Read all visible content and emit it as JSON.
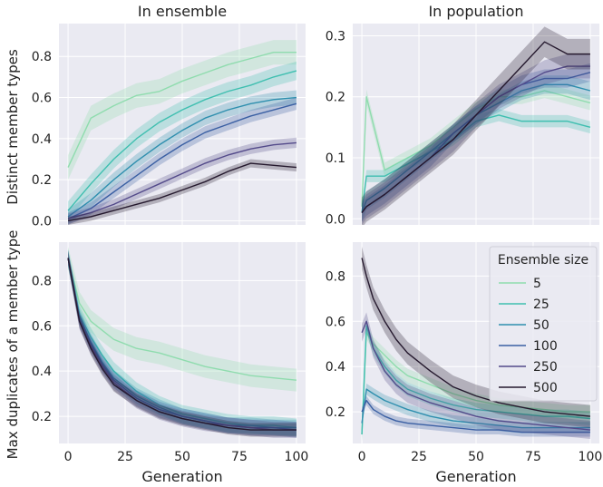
{
  "colors": {
    "panel_bg": "#EAEAF2",
    "grid": "#FFFFFF",
    "text": "#222222"
  },
  "legend": {
    "title": "Ensemble size",
    "placement": "inside lower-right panel, top-right"
  },
  "xlabel": "Generation",
  "chart_data": [
    {
      "type": "line",
      "title": "In ensemble",
      "xlabel": "",
      "ylabel": "Distinct member types",
      "xlim": [
        -4,
        104
      ],
      "ylim": [
        -0.02,
        0.96
      ],
      "x_ticks": [
        0,
        25,
        50,
        75,
        100
      ],
      "y_ticks": [
        0.0,
        0.2,
        0.4,
        0.6,
        0.8
      ],
      "y_tick_labels": [
        "0.0",
        "0.2",
        "0.4",
        "0.6",
        "0.8"
      ],
      "show_xtick_labels": false,
      "grid": true,
      "x": [
        0,
        10,
        20,
        30,
        40,
        50,
        60,
        70,
        80,
        90,
        100
      ],
      "series": [
        {
          "name": "5",
          "color": "#8fdcae",
          "band": 0.06,
          "values": [
            0.26,
            0.5,
            0.56,
            0.61,
            0.63,
            0.68,
            0.72,
            0.76,
            0.79,
            0.82,
            0.82
          ]
        },
        {
          "name": "25",
          "color": "#3fbfb0",
          "band": 0.045,
          "values": [
            0.05,
            0.18,
            0.3,
            0.4,
            0.48,
            0.54,
            0.59,
            0.63,
            0.66,
            0.7,
            0.73
          ]
        },
        {
          "name": "50",
          "color": "#2e8fae",
          "band": 0.035,
          "values": [
            0.02,
            0.1,
            0.2,
            0.29,
            0.37,
            0.44,
            0.5,
            0.54,
            0.57,
            0.59,
            0.6
          ]
        },
        {
          "name": "100",
          "color": "#3a5fa3",
          "band": 0.03,
          "values": [
            0.01,
            0.06,
            0.14,
            0.22,
            0.3,
            0.37,
            0.43,
            0.47,
            0.51,
            0.54,
            0.57
          ]
        },
        {
          "name": "250",
          "color": "#534a8a",
          "band": 0.025,
          "values": [
            0.01,
            0.04,
            0.08,
            0.13,
            0.18,
            0.23,
            0.28,
            0.32,
            0.35,
            0.37,
            0.38
          ]
        },
        {
          "name": "500",
          "color": "#25192e",
          "band": 0.02,
          "values": [
            0.0,
            0.02,
            0.05,
            0.08,
            0.11,
            0.15,
            0.19,
            0.24,
            0.28,
            0.27,
            0.26
          ]
        }
      ]
    },
    {
      "type": "line",
      "title": "In population",
      "xlabel": "",
      "ylabel": "",
      "xlim": [
        -4,
        104
      ],
      "ylim": [
        -0.01,
        0.32
      ],
      "x_ticks": [
        0,
        25,
        50,
        75,
        100
      ],
      "y_ticks": [
        0.0,
        0.1,
        0.2,
        0.3
      ],
      "y_tick_labels": [
        "0.0",
        "0.1",
        "0.2",
        "0.3"
      ],
      "show_xtick_labels": false,
      "grid": true,
      "x": [
        0,
        2,
        10,
        20,
        30,
        40,
        50,
        60,
        70,
        80,
        90,
        100
      ],
      "series": [
        {
          "name": "5",
          "color": "#8fdcae",
          "band": 0.012,
          "values": [
            0.02,
            0.2,
            0.08,
            0.1,
            0.12,
            0.15,
            0.18,
            0.2,
            0.2,
            0.21,
            0.2,
            0.19
          ]
        },
        {
          "name": "25",
          "color": "#3fbfb0",
          "band": 0.01,
          "values": [
            0.01,
            0.07,
            0.07,
            0.09,
            0.11,
            0.13,
            0.16,
            0.17,
            0.16,
            0.16,
            0.16,
            0.15
          ]
        },
        {
          "name": "50",
          "color": "#2e8fae",
          "band": 0.015,
          "values": [
            0.01,
            0.03,
            0.05,
            0.08,
            0.11,
            0.14,
            0.17,
            0.19,
            0.21,
            0.22,
            0.22,
            0.21
          ]
        },
        {
          "name": "100",
          "color": "#3a5fa3",
          "band": 0.015,
          "values": [
            0.01,
            0.02,
            0.04,
            0.07,
            0.1,
            0.14,
            0.17,
            0.2,
            0.22,
            0.23,
            0.23,
            0.24
          ]
        },
        {
          "name": "250",
          "color": "#534a8a",
          "band": 0.02,
          "values": [
            0.01,
            0.02,
            0.04,
            0.07,
            0.1,
            0.13,
            0.17,
            0.2,
            0.22,
            0.24,
            0.25,
            0.25
          ]
        },
        {
          "name": "500",
          "color": "#25192e",
          "band": 0.025,
          "values": [
            0.01,
            0.02,
            0.04,
            0.07,
            0.1,
            0.13,
            0.17,
            0.21,
            0.25,
            0.29,
            0.27,
            0.27
          ]
        }
      ]
    },
    {
      "type": "line",
      "title": "",
      "xlabel": "Generation",
      "ylabel": "Max duplicates of a member type",
      "xlim": [
        -4,
        104
      ],
      "ylim": [
        0.08,
        0.97
      ],
      "x_ticks": [
        0,
        25,
        50,
        75,
        100
      ],
      "y_ticks": [
        0.2,
        0.4,
        0.6,
        0.8
      ],
      "y_tick_labels": [
        "0.2",
        "0.4",
        "0.6",
        "0.8"
      ],
      "show_xtick_labels": true,
      "grid": true,
      "x": [
        0,
        5,
        10,
        15,
        20,
        30,
        40,
        50,
        60,
        70,
        80,
        90,
        100
      ],
      "series": [
        {
          "name": "5",
          "color": "#8fdcae",
          "band": 0.05,
          "values": [
            0.9,
            0.7,
            0.62,
            0.58,
            0.54,
            0.5,
            0.48,
            0.45,
            0.42,
            0.4,
            0.38,
            0.37,
            0.36
          ]
        },
        {
          "name": "25",
          "color": "#3fbfb0",
          "band": 0.04,
          "values": [
            0.9,
            0.65,
            0.55,
            0.47,
            0.4,
            0.31,
            0.25,
            0.21,
            0.19,
            0.17,
            0.16,
            0.16,
            0.15
          ]
        },
        {
          "name": "50",
          "color": "#2e8fae",
          "band": 0.035,
          "values": [
            0.9,
            0.64,
            0.53,
            0.44,
            0.37,
            0.29,
            0.24,
            0.2,
            0.18,
            0.16,
            0.16,
            0.15,
            0.15
          ]
        },
        {
          "name": "100",
          "color": "#3a5fa3",
          "band": 0.035,
          "values": [
            0.9,
            0.63,
            0.52,
            0.43,
            0.36,
            0.28,
            0.23,
            0.2,
            0.18,
            0.16,
            0.15,
            0.15,
            0.14
          ]
        },
        {
          "name": "250",
          "color": "#534a8a",
          "band": 0.035,
          "values": [
            0.9,
            0.62,
            0.51,
            0.42,
            0.35,
            0.27,
            0.22,
            0.19,
            0.17,
            0.16,
            0.15,
            0.14,
            0.14
          ]
        },
        {
          "name": "500",
          "color": "#25192e",
          "band": 0.03,
          "values": [
            0.9,
            0.62,
            0.5,
            0.41,
            0.34,
            0.27,
            0.22,
            0.19,
            0.17,
            0.15,
            0.14,
            0.14,
            0.14
          ]
        }
      ]
    },
    {
      "type": "line",
      "title": "",
      "xlabel": "Generation",
      "ylabel": "",
      "xlim": [
        -4,
        104
      ],
      "ylim": [
        0.06,
        0.95
      ],
      "x_ticks": [
        0,
        25,
        50,
        75,
        100
      ],
      "y_ticks": [
        0.2,
        0.4,
        0.6,
        0.8
      ],
      "y_tick_labels": [
        "0.2",
        "0.4",
        "0.6",
        "0.8"
      ],
      "show_xtick_labels": true,
      "grid": true,
      "x": [
        0,
        2,
        5,
        10,
        15,
        20,
        30,
        40,
        50,
        60,
        70,
        80,
        90,
        100
      ],
      "series": [
        {
          "name": "5",
          "color": "#8fdcae",
          "band": 0.03,
          "values": [
            0.1,
            0.55,
            0.5,
            0.45,
            0.4,
            0.36,
            0.32,
            0.28,
            0.25,
            0.23,
            0.22,
            0.21,
            0.2,
            0.2
          ]
        },
        {
          "name": "25",
          "color": "#3fbfb0",
          "band": 0.03,
          "values": [
            0.1,
            0.58,
            0.48,
            0.4,
            0.34,
            0.3,
            0.26,
            0.23,
            0.21,
            0.2,
            0.19,
            0.18,
            0.18,
            0.17
          ]
        },
        {
          "name": "50",
          "color": "#2e8fae",
          "band": 0.025,
          "values": [
            0.15,
            0.3,
            0.28,
            0.25,
            0.23,
            0.21,
            0.18,
            0.16,
            0.15,
            0.14,
            0.13,
            0.13,
            0.13,
            0.13
          ]
        },
        {
          "name": "100",
          "color": "#3a5fa3",
          "band": 0.02,
          "values": [
            0.2,
            0.25,
            0.21,
            0.18,
            0.16,
            0.15,
            0.14,
            0.13,
            0.12,
            0.12,
            0.11,
            0.11,
            0.11,
            0.11
          ]
        },
        {
          "name": "250",
          "color": "#534a8a",
          "band": 0.04,
          "values": [
            0.55,
            0.6,
            0.48,
            0.38,
            0.32,
            0.28,
            0.24,
            0.21,
            0.18,
            0.16,
            0.15,
            0.14,
            0.13,
            0.12
          ]
        },
        {
          "name": "500",
          "color": "#25192e",
          "band": 0.05,
          "values": [
            0.88,
            0.8,
            0.7,
            0.6,
            0.52,
            0.46,
            0.38,
            0.31,
            0.27,
            0.24,
            0.22,
            0.2,
            0.19,
            0.18
          ]
        }
      ]
    }
  ]
}
